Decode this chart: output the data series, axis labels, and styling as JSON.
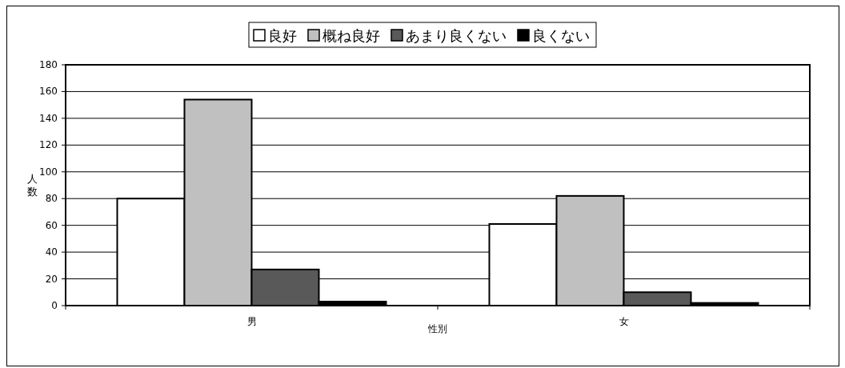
{
  "chart_data": {
    "type": "bar",
    "xlabel": "性別",
    "ylabel": "人数",
    "categories": [
      "男",
      "女"
    ],
    "series": [
      {
        "name": "良好",
        "color": "#ffffff",
        "values": [
          80,
          61
        ]
      },
      {
        "name": "概ね良好",
        "color": "#c0c0c0",
        "values": [
          154,
          82
        ]
      },
      {
        "name": "あまり良くない",
        "color": "#595959",
        "values": [
          27,
          10
        ]
      },
      {
        "name": "良くない",
        "color": "#000000",
        "values": [
          3,
          2
        ]
      }
    ],
    "ylim": [
      0,
      180
    ],
    "yticks": [
      0,
      20,
      40,
      60,
      80,
      100,
      120,
      140,
      160,
      180
    ],
    "grid": "y",
    "legend": "top"
  }
}
